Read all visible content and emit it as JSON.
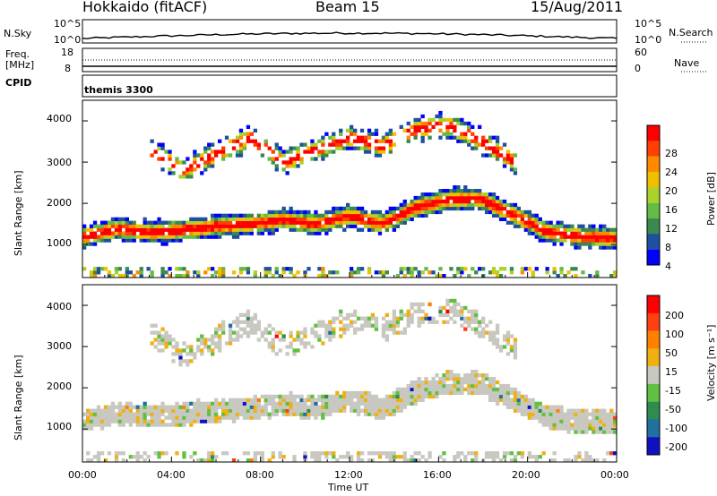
{
  "header": {
    "station": "Hokkaido (fitACF)",
    "beam": "Beam 15",
    "date": "15/Aug/2011"
  },
  "top_panels": {
    "nsky_label": "N.Sky",
    "nsearch_label": "N.Search",
    "nsky_ticks": [
      "10^5",
      "10^0"
    ],
    "nsky_ticks_right": [
      "10^5",
      "10^0"
    ],
    "freq_label_1": "Freq.",
    "freq_label_2": "[MHz]",
    "freq_ticks": [
      "18",
      "8"
    ],
    "nave_ticks": [
      "60",
      "0"
    ],
    "nave_label": "Nave",
    "cpid_label": "CPID",
    "cpid_value": "themis 3300"
  },
  "colors": {
    "power": [
      "#0000ff",
      "#1f4fa0",
      "#3a8a50",
      "#66bb44",
      "#aad22a",
      "#f0c000",
      "#ff8a00",
      "#ff4000",
      "#ff0000"
    ],
    "velocity": [
      "#1010c0",
      "#2070a0",
      "#2e8c50",
      "#60c040",
      "#c8c8c0",
      "#f0b010",
      "#ff8000",
      "#ff4010",
      "#ff0000"
    ]
  },
  "chart_data": [
    {
      "type": "heatmap",
      "parameter": "Power",
      "ylabel": "Slant Range [km]",
      "ylim": [
        200,
        4500
      ],
      "yticks": [
        "4000",
        "3000",
        "2000",
        "1000"
      ],
      "xlim": [
        "00:00",
        "24:00"
      ],
      "colorbar": {
        "label": "Power [dB]",
        "ticks": [
          "28",
          "24",
          "20",
          "16",
          "12",
          "8",
          "4"
        ]
      },
      "bands": [
        {
          "name": "main echo band",
          "center_km": [
            1200,
            1380,
            1300,
            1350,
            1450,
            1500,
            1600,
            1500,
            1700,
            1500,
            1900,
            2100,
            2100,
            1700,
            1300,
            1200,
            1150
          ],
          "width_km": 450
        },
        {
          "name": "upper band",
          "center_km": [
            null,
            null,
            3300,
            2800,
            3200,
            3600,
            3000,
            3300,
            3600,
            3400,
            3800,
            3900,
            3500,
            3000,
            null,
            null,
            null
          ],
          "width_km": 500
        }
      ]
    },
    {
      "type": "heatmap",
      "parameter": "Velocity",
      "ylabel": "Slant Range [km]",
      "ylim": [
        200,
        4500
      ],
      "yticks": [
        "4000",
        "3000",
        "2000",
        "1000"
      ],
      "xlim": [
        "00:00",
        "24:00"
      ],
      "colorbar": {
        "label": "Velocity [m s⁻¹]",
        "ticks": [
          "200",
          "100",
          "50",
          "15",
          "-15",
          "-50",
          "-100",
          "-200"
        ]
      }
    }
  ],
  "xaxis": {
    "ticks": [
      "00:00",
      "04:00",
      "08:00",
      "12:00",
      "16:00",
      "20:00",
      "00:00"
    ],
    "label": "Time UT"
  }
}
